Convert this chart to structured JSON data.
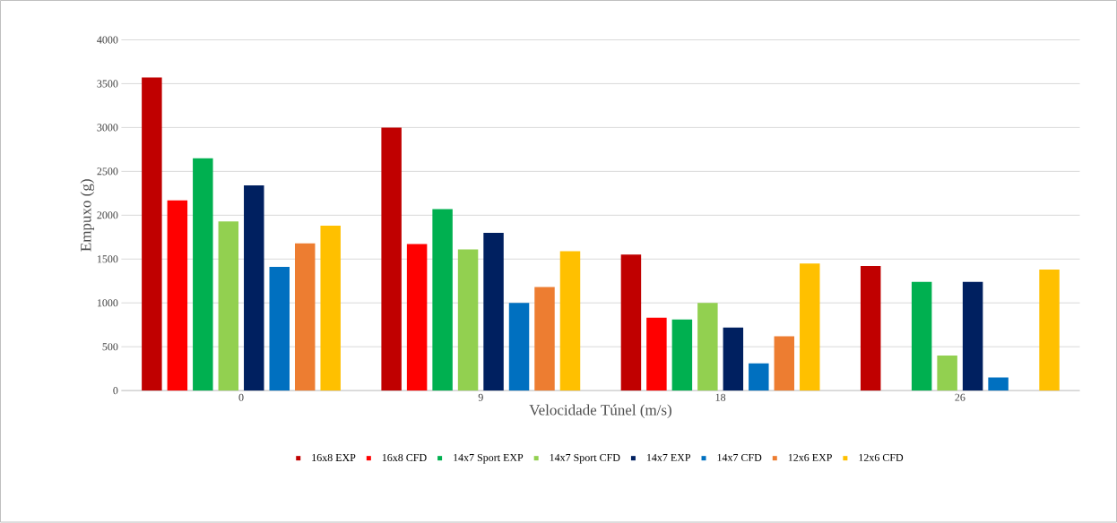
{
  "chart_data": {
    "type": "bar",
    "xlabel": "Velocidade Túnel (m/s)",
    "ylabel": "Empuxo (g)",
    "categories": [
      "0",
      "9",
      "18",
      "26"
    ],
    "series": [
      {
        "name": "16x8 EXP",
        "color": "#c00000",
        "values": [
          3570,
          3000,
          1550,
          1420
        ]
      },
      {
        "name": "16x8 CFD",
        "color": "#ff0000",
        "values": [
          2170,
          1670,
          830,
          null
        ]
      },
      {
        "name": "14x7 Sport EXP",
        "color": "#00b050",
        "values": [
          2650,
          2070,
          810,
          1240
        ]
      },
      {
        "name": "14x7 Sport CFD",
        "color": "#92d050",
        "values": [
          1930,
          1610,
          1000,
          400
        ]
      },
      {
        "name": "14x7 EXP",
        "color": "#002060",
        "values": [
          2340,
          1800,
          720,
          1240
        ]
      },
      {
        "name": "14x7 CFD",
        "color": "#0070c0",
        "values": [
          1410,
          1000,
          310,
          150
        ]
      },
      {
        "name": "12x6 EXP",
        "color": "#ed7d31",
        "values": [
          1680,
          1180,
          620,
          null
        ]
      },
      {
        "name": "12x6 CFD",
        "color": "#ffc000",
        "values": [
          1880,
          1590,
          1450,
          1380
        ]
      }
    ],
    "ylim": [
      0,
      4000
    ],
    "yticks": [
      0,
      500,
      1000,
      1500,
      2000,
      2500,
      3000,
      3500,
      4000
    ],
    "grid": "y",
    "legend": "bottom"
  }
}
